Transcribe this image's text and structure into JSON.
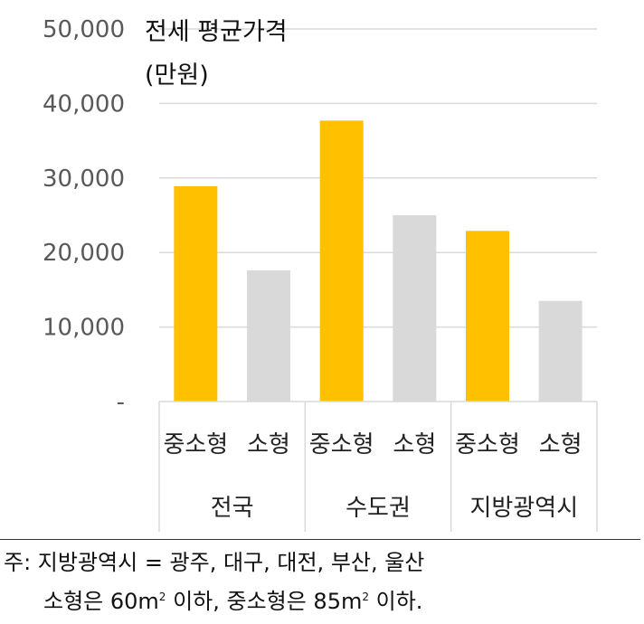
{
  "chart_data": {
    "type": "bar",
    "ylabel_line1": "전세 평균가격",
    "ylabel_line2": "(만원)",
    "ylim": [
      0,
      50000
    ],
    "yticks": [
      {
        "value": 0,
        "label": "-"
      },
      {
        "value": 10000,
        "label": "10,000"
      },
      {
        "value": 20000,
        "label": "20,000"
      },
      {
        "value": 30000,
        "label": "30,000"
      },
      {
        "value": 40000,
        "label": "40,000"
      },
      {
        "value": 50000,
        "label": "50,000"
      }
    ],
    "groups": [
      "전국",
      "수도권",
      "지방광역시"
    ],
    "categories": [
      "중소형",
      "소형",
      "중소형",
      "소형",
      "중소형",
      "소형"
    ],
    "values": [
      28900,
      17600,
      37700,
      25000,
      22900,
      13500
    ],
    "colors": [
      "#FFC000",
      "#D9D9D9",
      "#FFC000",
      "#D9D9D9",
      "#FFC000",
      "#D9D9D9"
    ],
    "grid": true,
    "legend": "none"
  },
  "footnote": {
    "line1": "주: 지방광역시 = 광주, 대구, 대전, 부산, 울산",
    "line2_a": "소형은 60m",
    "line2_sup1": "2",
    "line2_b": " 이하, 중소형은 85m",
    "line2_sup2": "2",
    "line2_c": " 이하."
  }
}
